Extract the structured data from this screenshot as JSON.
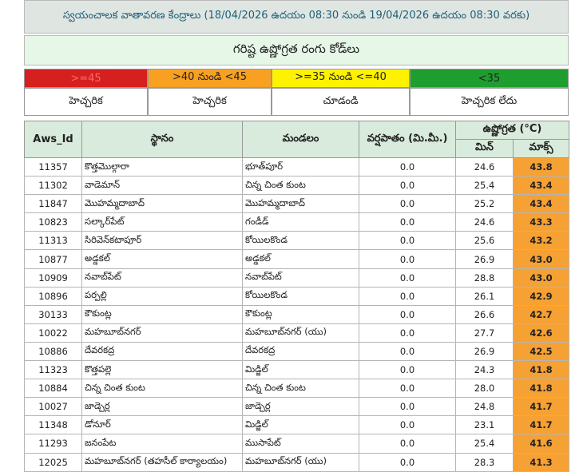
{
  "title": "స్వయంచాలక వాతావరణ కేంద్రాలు (18/04/2026 ఉదయం 08:30 నుండి 19/04/2026 ఉదయం 08:30 వరకు)",
  "subtitle": "గరిష్ట ఉష్ణోగ్రత రంగు కోడ్‌లు",
  "legend": [
    {
      "range": ">=45",
      "label": "హెచ్చరిక",
      "color": "#d61f1f",
      "text_color": "#ff6a6a"
    },
    {
      "range": ">40 నుండి <45",
      "label": "హెచ్చరిక",
      "color": "#f7a021",
      "text_color": "#222222"
    },
    {
      "range": ">=35 నుండి <=40",
      "label": "చూడండి",
      "color": "#fff200",
      "text_color": "#222222"
    },
    {
      "range": "<35",
      "label": "హెచ్చరిక లేదు",
      "color": "#1e9e2e",
      "text_color": "#222222"
    }
  ],
  "table": {
    "headers": {
      "aws_id": "Aws_Id",
      "station": "స్థానం",
      "mandal": "మండలం",
      "rainfall": "వర్షపాతం (మి.మీ.)",
      "temperature": "ఉష్ణోగ్రత (°C)",
      "min": "మిన్",
      "max": "మాక్స్"
    },
    "rows": [
      {
        "id": "11357",
        "station": "కొత్తమొల్గారా",
        "mandal": "భూత్‌పూర్",
        "rain": "0.0",
        "min": "24.6",
        "max": "43.8"
      },
      {
        "id": "11302",
        "station": "వాడెమాన్",
        "mandal": "చిన్న చింత కుంట",
        "rain": "0.0",
        "min": "25.4",
        "max": "43.4"
      },
      {
        "id": "11847",
        "station": "మొహమ్మదాబాద్",
        "mandal": "మొహమ్మదాబాద్",
        "rain": "0.0",
        "min": "25.2",
        "max": "43.4"
      },
      {
        "id": "10823",
        "station": "సల్కార్‌పేట్",
        "mandal": "గండీడ్",
        "rain": "0.0",
        "min": "24.6",
        "max": "43.3"
      },
      {
        "id": "11313",
        "station": "సిరివెన్‌కటాపూర్",
        "mandal": "కోయిలకొండ",
        "rain": "0.0",
        "min": "25.6",
        "max": "43.2"
      },
      {
        "id": "10877",
        "station": "అడ్డకల్",
        "mandal": "అడ్డకల్",
        "rain": "0.0",
        "min": "26.9",
        "max": "43.0"
      },
      {
        "id": "10909",
        "station": "నవాబ్‌పేట్",
        "mandal": "నవాబ్‌పేట్",
        "rain": "0.0",
        "min": "28.8",
        "max": "43.0"
      },
      {
        "id": "10896",
        "station": "పర్పల్లి",
        "mandal": "కోయిలకొండ",
        "rain": "0.0",
        "min": "26.1",
        "max": "42.9"
      },
      {
        "id": "30133",
        "station": "కౌకుంట్ల",
        "mandal": "కౌకుంట్ల",
        "rain": "0.0",
        "min": "26.6",
        "max": "42.7"
      },
      {
        "id": "10022",
        "station": "మహబూబ్‌నగర్",
        "mandal": "మహబూబ్‌నగర్ (యు)",
        "rain": "0.0",
        "min": "27.7",
        "max": "42.6"
      },
      {
        "id": "10886",
        "station": "దేవరకద్ర",
        "mandal": "దేవరకద్ర",
        "rain": "0.0",
        "min": "26.9",
        "max": "42.5"
      },
      {
        "id": "11323",
        "station": "కొత్తపల్లె",
        "mandal": "మిడ్జిల్",
        "rain": "0.0",
        "min": "24.3",
        "max": "41.8"
      },
      {
        "id": "10884",
        "station": "చిన్న చింత కుంట",
        "mandal": "చిన్న చింత కుంట",
        "rain": "0.0",
        "min": "28.0",
        "max": "41.8"
      },
      {
        "id": "10027",
        "station": "జాడ్చెర్ల",
        "mandal": "జాడ్చెర్ల",
        "rain": "0.0",
        "min": "24.8",
        "max": "41.7"
      },
      {
        "id": "11348",
        "station": "డోనూర్",
        "mandal": "మిడ్జిల్",
        "rain": "0.0",
        "min": "23.1",
        "max": "41.7"
      },
      {
        "id": "11293",
        "station": "జనంపేట",
        "mandal": "ముసాపేట్",
        "rain": "0.0",
        "min": "25.4",
        "max": "41.6"
      },
      {
        "id": "12025",
        "station": "మహబూబ్‌నగర్ (తహసీల్ కార్యాలయం)",
        "mandal": "మహబూబ్‌నగర్ (యు)",
        "rain": "0.0",
        "min": "28.3",
        "max": "41.3"
      }
    ]
  }
}
